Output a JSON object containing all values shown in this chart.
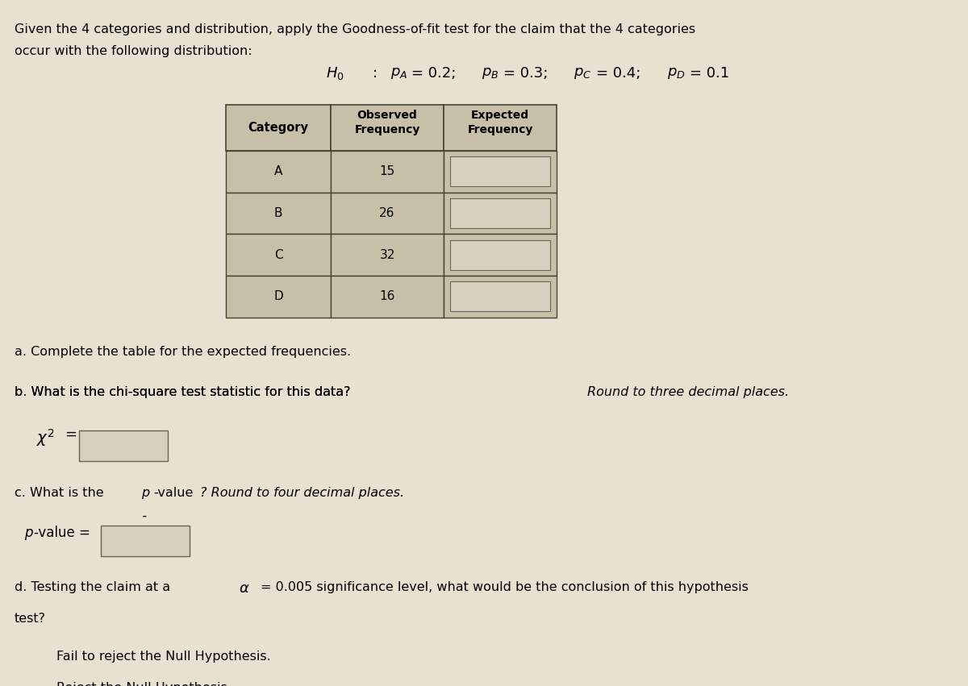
{
  "title_line1": "Given the 4 categories and distribution, apply the Goodness-of-fit test for the claim that the 4 categories",
  "title_line2": "occur with the following distribution:",
  "hypothesis": "H_0 : p_A = 0.2;  p_B = 0.3;  p_C = 0.4;  p_D = 0.1",
  "col_headers": [
    "Category",
    "Observed\nFrequency",
    "Expected\nFrequency"
  ],
  "categories": [
    "A",
    "B",
    "C",
    "D"
  ],
  "observed": [
    15,
    26,
    32,
    16
  ],
  "part_a_label": "a. Complete the table for the expected frequencies.",
  "part_b_label": "b. What is the chi-square test statistic for this data?",
  "part_b_italic": "Round to three decimal places.",
  "part_b_formula": "x² =",
  "part_c_label": "c. What is the",
  "part_c_pvalue": "p-value",
  "part_c_rest": "? Round to four decimal places.",
  "part_c_answer": "p-value =",
  "part_d_line1": "d. Testing the claim at a α = 0.005 significance level, what would be the conclusion of this hypothesis",
  "part_d_line2": "test?",
  "option1": "Fail to reject the Null Hypothesis.",
  "option2": "Reject the Null Hypothesis.",
  "bg_color": "#e8e0d0",
  "table_header_bg": "#c8bfa8",
  "table_cell_bg": "#c8bfa8",
  "table_input_bg": "#e8ddd0",
  "white_box_bg": "#ddd5c5",
  "table_border_color": "#888878",
  "text_color": "#000000"
}
